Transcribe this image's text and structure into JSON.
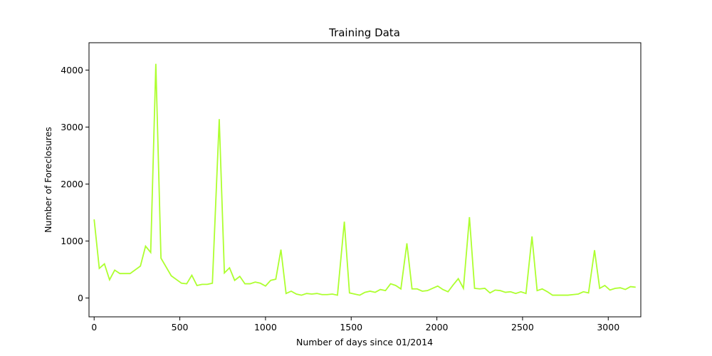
{
  "chart_data": {
    "type": "line",
    "title": "Training Data",
    "xlabel": "Number of days since 01/2014",
    "ylabel": "Number of Foreclosures",
    "xlim": [
      -30,
      3190
    ],
    "ylim": [
      -330,
      4480
    ],
    "x_ticks": [
      0,
      500,
      1000,
      1500,
      2000,
      2500,
      3000
    ],
    "y_ticks": [
      0,
      1000,
      2000,
      3000,
      4000
    ],
    "grid": false,
    "line_color": "#adff2f",
    "series": [
      {
        "x": [
          0,
          30,
          60,
          90,
          120,
          150,
          210,
          270,
          300,
          330,
          360,
          390,
          450,
          510,
          540,
          570,
          600,
          630,
          660,
          690,
          730,
          760,
          790,
          820,
          850,
          880,
          910,
          940,
          970,
          1000,
          1030,
          1060,
          1090,
          1120,
          1150,
          1180,
          1210,
          1240,
          1270,
          1300,
          1330,
          1360,
          1390,
          1420,
          1460,
          1490,
          1520,
          1550,
          1580,
          1610,
          1640,
          1670,
          1700,
          1730,
          1760,
          1790,
          1825,
          1855,
          1885,
          1915,
          1945,
          1975,
          2005,
          2035,
          2065,
          2095,
          2125,
          2155,
          2190,
          2220,
          2250,
          2280,
          2310,
          2340,
          2370,
          2400,
          2430,
          2460,
          2490,
          2520,
          2555,
          2585,
          2615,
          2645,
          2675,
          2705,
          2735,
          2765,
          2795,
          2825,
          2855,
          2885,
          2920,
          2950,
          2980,
          3010,
          3040,
          3070,
          3100,
          3130,
          3160
        ],
        "y": [
          1380,
          520,
          600,
          320,
          490,
          430,
          430,
          560,
          910,
          800,
          4110,
          700,
          390,
          260,
          250,
          400,
          220,
          240,
          240,
          260,
          3140,
          440,
          530,
          310,
          380,
          250,
          250,
          280,
          260,
          210,
          310,
          330,
          850,
          80,
          120,
          70,
          50,
          80,
          70,
          80,
          60,
          60,
          70,
          50,
          1340,
          90,
          70,
          50,
          100,
          120,
          100,
          150,
          130,
          250,
          220,
          160,
          960,
          160,
          160,
          120,
          130,
          170,
          210,
          150,
          110,
          230,
          340,
          170,
          1420,
          170,
          160,
          170,
          90,
          140,
          130,
          100,
          110,
          80,
          110,
          80,
          1080,
          130,
          160,
          110,
          50,
          50,
          50,
          50,
          60,
          70,
          110,
          90,
          840,
          170,
          220,
          140,
          170,
          180,
          150,
          200,
          190
        ]
      }
    ]
  }
}
